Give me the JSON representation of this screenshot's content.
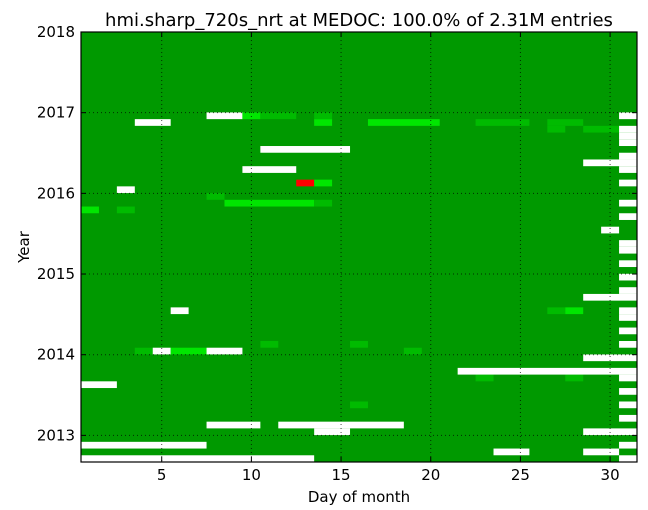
{
  "chart_data": {
    "type": "heatmap",
    "title": "hmi.sharp_720s_nrt at MEDOC: 100.0% of 2.31M entries",
    "xlabel": "Day of month",
    "ylabel": "Year",
    "xlim": [
      0.5,
      31.5
    ],
    "ylim": [
      2012.67,
      2018.0
    ],
    "xticks": [
      5,
      10,
      15,
      20,
      25,
      30
    ],
    "yticks": [
      2013,
      2014,
      2015,
      2016,
      2017,
      2018
    ],
    "grid": true,
    "colors": {
      "full": "#009900",
      "medium": "#00bb00",
      "bright": "#00e600",
      "missing": "#ffffff",
      "error": "#ff0000"
    },
    "start": "2012-09",
    "months": 64,
    "cells": [
      {
        "month": "2012-09",
        "from": 1,
        "to": 13,
        "status": "missing"
      },
      {
        "month": "2012-09",
        "from": 31,
        "to": 31,
        "status": "missing"
      },
      {
        "month": "2012-10",
        "from": 24,
        "to": 25,
        "status": "missing"
      },
      {
        "month": "2012-10",
        "from": 29,
        "to": 30,
        "status": "missing"
      },
      {
        "month": "2012-11",
        "from": 1,
        "to": 7,
        "status": "missing"
      },
      {
        "month": "2012-11",
        "from": 31,
        "to": 31,
        "status": "missing"
      },
      {
        "month": "2013-01",
        "from": 14,
        "to": 15,
        "status": "missing"
      },
      {
        "month": "2013-01",
        "from": 29,
        "to": 31,
        "status": "missing"
      },
      {
        "month": "2013-02",
        "from": 8,
        "to": 10,
        "status": "missing"
      },
      {
        "month": "2013-02",
        "from": 12,
        "to": 18,
        "status": "missing"
      },
      {
        "month": "2013-03",
        "from": 31,
        "to": 31,
        "status": "missing"
      },
      {
        "month": "2013-05",
        "from": 16,
        "to": 16,
        "status": "medium"
      },
      {
        "month": "2013-05",
        "from": 31,
        "to": 31,
        "status": "missing"
      },
      {
        "month": "2013-07",
        "from": 31,
        "to": 31,
        "status": "missing"
      },
      {
        "month": "2013-08",
        "from": 1,
        "to": 2,
        "status": "missing"
      },
      {
        "month": "2013-09",
        "from": 23,
        "to": 23,
        "status": "medium"
      },
      {
        "month": "2013-09",
        "from": 28,
        "to": 28,
        "status": "medium"
      },
      {
        "month": "2013-09",
        "from": 31,
        "to": 31,
        "status": "missing"
      },
      {
        "month": "2013-10",
        "from": 22,
        "to": 31,
        "status": "missing"
      },
      {
        "month": "2013-12",
        "from": 29,
        "to": 31,
        "status": "missing"
      },
      {
        "month": "2014-01",
        "from": 4,
        "to": 4,
        "status": "medium"
      },
      {
        "month": "2014-01",
        "from": 5,
        "to": 5,
        "status": "missing"
      },
      {
        "month": "2014-01",
        "from": 6,
        "to": 7,
        "status": "bright"
      },
      {
        "month": "2014-01",
        "from": 8,
        "to": 9,
        "status": "missing"
      },
      {
        "month": "2014-01",
        "from": 19,
        "to": 19,
        "status": "medium"
      },
      {
        "month": "2014-02",
        "from": 11,
        "to": 11,
        "status": "medium"
      },
      {
        "month": "2014-02",
        "from": 16,
        "to": 16,
        "status": "medium"
      },
      {
        "month": "2014-02",
        "from": 31,
        "to": 31,
        "status": "missing"
      },
      {
        "month": "2014-04",
        "from": 31,
        "to": 31,
        "status": "missing"
      },
      {
        "month": "2014-06",
        "from": 31,
        "to": 31,
        "status": "missing"
      },
      {
        "month": "2014-07",
        "from": 6,
        "to": 6,
        "status": "missing"
      },
      {
        "month": "2014-07",
        "from": 27,
        "to": 27,
        "status": "medium"
      },
      {
        "month": "2014-07",
        "from": 28,
        "to": 28,
        "status": "bright"
      },
      {
        "month": "2014-07",
        "from": 31,
        "to": 31,
        "status": "missing"
      },
      {
        "month": "2014-09",
        "from": 29,
        "to": 31,
        "status": "missing"
      },
      {
        "month": "2014-10",
        "from": 31,
        "to": 31,
        "status": "missing"
      },
      {
        "month": "2014-12",
        "from": 31,
        "to": 31,
        "status": "missing"
      },
      {
        "month": "2015-02",
        "from": 31,
        "to": 31,
        "status": "missing"
      },
      {
        "month": "2015-04",
        "from": 31,
        "to": 31,
        "status": "missing"
      },
      {
        "month": "2015-05",
        "from": 31,
        "to": 31,
        "status": "missing"
      },
      {
        "month": "2015-07",
        "from": 30,
        "to": 30,
        "status": "missing"
      },
      {
        "month": "2015-09",
        "from": 31,
        "to": 31,
        "status": "missing"
      },
      {
        "month": "2015-10",
        "from": 1,
        "to": 1,
        "status": "bright"
      },
      {
        "month": "2015-10",
        "from": 3,
        "to": 3,
        "status": "medium"
      },
      {
        "month": "2015-11",
        "from": 9,
        "to": 13,
        "status": "bright"
      },
      {
        "month": "2015-11",
        "from": 14,
        "to": 14,
        "status": "medium"
      },
      {
        "month": "2015-11",
        "from": 31,
        "to": 31,
        "status": "missing"
      },
      {
        "month": "2015-12",
        "from": 8,
        "to": 8,
        "status": "medium"
      },
      {
        "month": "2016-01",
        "from": 3,
        "to": 3,
        "status": "missing"
      },
      {
        "month": "2016-02",
        "from": 13,
        "to": 13,
        "status": "error"
      },
      {
        "month": "2016-02",
        "from": 14,
        "to": 14,
        "status": "bright"
      },
      {
        "month": "2016-02",
        "from": 31,
        "to": 31,
        "status": "missing"
      },
      {
        "month": "2016-04",
        "from": 10,
        "to": 12,
        "status": "missing"
      },
      {
        "month": "2016-04",
        "from": 31,
        "to": 31,
        "status": "missing"
      },
      {
        "month": "2016-05",
        "from": 29,
        "to": 31,
        "status": "missing"
      },
      {
        "month": "2016-06",
        "from": 31,
        "to": 31,
        "status": "missing"
      },
      {
        "month": "2016-07",
        "from": 11,
        "to": 15,
        "status": "missing"
      },
      {
        "month": "2016-08",
        "from": 31,
        "to": 31,
        "status": "missing"
      },
      {
        "month": "2016-09",
        "from": 31,
        "to": 31,
        "status": "missing"
      },
      {
        "month": "2016-10",
        "from": 27,
        "to": 27,
        "status": "medium"
      },
      {
        "month": "2016-10",
        "from": 29,
        "to": 31,
        "status": "medium"
      },
      {
        "month": "2016-10",
        "from": 31,
        "to": 31,
        "status": "missing"
      },
      {
        "month": "2016-11",
        "from": 4,
        "to": 5,
        "status": "missing"
      },
      {
        "month": "2016-11",
        "from": 14,
        "to": 14,
        "status": "bright"
      },
      {
        "month": "2016-11",
        "from": 17,
        "to": 20,
        "status": "bright"
      },
      {
        "month": "2016-11",
        "from": 23,
        "to": 25,
        "status": "medium"
      },
      {
        "month": "2016-11",
        "from": 27,
        "to": 28,
        "status": "medium"
      },
      {
        "month": "2016-12",
        "from": 8,
        "to": 9,
        "status": "missing"
      },
      {
        "month": "2016-12",
        "from": 10,
        "to": 10,
        "status": "bright"
      },
      {
        "month": "2016-12",
        "from": 11,
        "to": 12,
        "status": "medium"
      },
      {
        "month": "2016-12",
        "from": 14,
        "to": 14,
        "status": "medium"
      },
      {
        "month": "2016-12",
        "from": 31,
        "to": 31,
        "status": "missing"
      }
    ]
  }
}
